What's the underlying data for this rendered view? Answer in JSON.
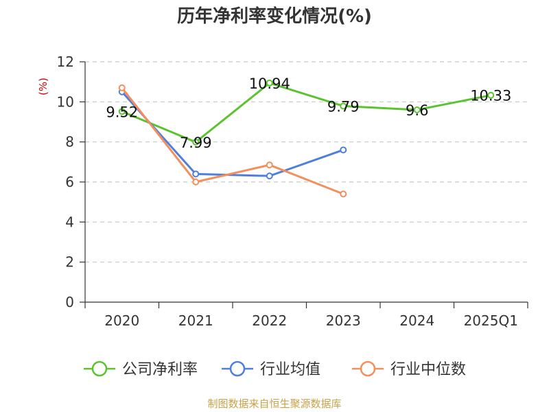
{
  "chart_data": {
    "type": "line",
    "title": "历年净利率变化情况(%)",
    "ylabel": "(%)",
    "ylim": [
      0,
      12
    ],
    "yticks": [
      0,
      2,
      4,
      6,
      8,
      10,
      12
    ],
    "grid": true,
    "legend_position": "bottom",
    "categories": [
      "2020",
      "2021",
      "2022",
      "2023",
      "2024",
      "2025Q1"
    ],
    "series": [
      {
        "name": "公司净利率",
        "color": "#5cc330",
        "values": [
          9.52,
          7.99,
          10.94,
          9.79,
          9.6,
          10.33
        ],
        "labels": [
          "9.52",
          "7.99",
          "10.94",
          "9.79",
          "9.6",
          "10.33"
        ]
      },
      {
        "name": "行业均值",
        "color": "#4f7fdc",
        "values": [
          10.5,
          6.4,
          6.3,
          7.6,
          null,
          null
        ]
      },
      {
        "name": "行业中位数",
        "color": "#f38f5c",
        "values": [
          10.7,
          6.0,
          6.85,
          5.4,
          null,
          null
        ]
      }
    ]
  },
  "source": "制图数据来自恒生聚源数据库"
}
